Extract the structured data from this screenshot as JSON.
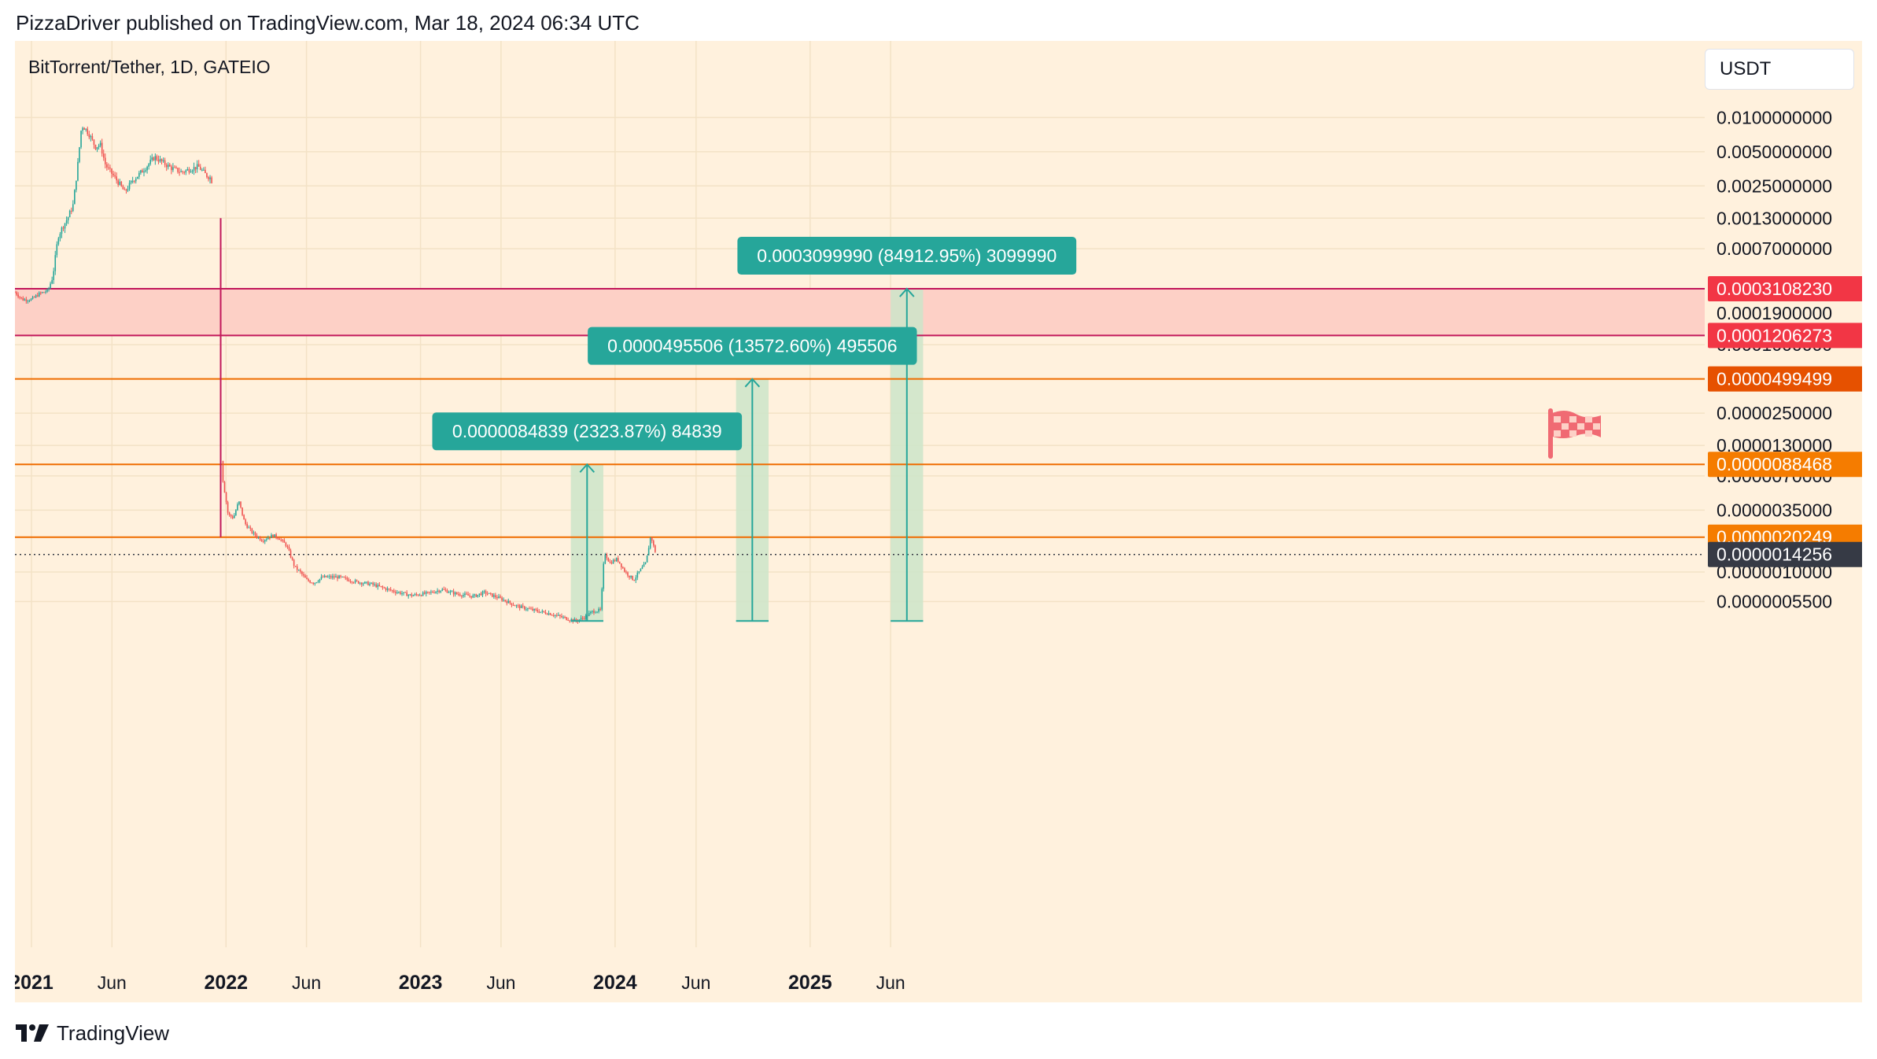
{
  "header": {
    "published": "PizzaDriver published on TradingView.com, Mar 18, 2024 06:34 UTC"
  },
  "symbol": {
    "title": "BitTorrent/Tether, 1D, GATEIO"
  },
  "unit": "USDT",
  "footer": {
    "brand": "TradingView",
    "logo": "tradingview-logo-icon"
  },
  "colors": {
    "background": "#fff1dd",
    "zone": "#fdd0c6",
    "red_line": "#c2185b",
    "orange_line": "#ef6c00",
    "projection": "#26a69a",
    "projection_fill": "#cde5c9",
    "up_candle": "#26a69a",
    "down_candle": "#ef5350",
    "red_tag": "#f23645",
    "orange_tag": "#f57c00",
    "dark_orange_tag": "#e65100",
    "current_tag": "#363a45"
  },
  "flag_icon": "checkered-flag-icon",
  "chart_data": {
    "type": "candlestick",
    "title": "BitTorrent/Tether, 1D, GATEIO",
    "scale": "log",
    "grid": true,
    "x_ticks": [
      "2021",
      "Jun",
      "2022",
      "Jun",
      "2023",
      "Jun",
      "2024",
      "Jun",
      "2025",
      "Jun"
    ],
    "y_ticks": [
      "0.0100000000",
      "0.0050000000",
      "0.0025000000",
      "0.0013000000",
      "0.0007000000",
      "0.0001900000",
      "0.0001000000",
      "0.0000250000",
      "0.0000130000",
      "0.0000070000",
      "0.0000035000",
      "0.0000010000",
      "0.0000005500"
    ],
    "y_tick_values": [
      0.01,
      0.005,
      0.0025,
      0.0013,
      0.0007,
      0.00019,
      0.0001,
      2.5e-05,
      1.3e-05,
      7e-06,
      3.5e-06,
      1e-06,
      5.5e-07
    ],
    "price_levels": [
      {
        "label": "0.0003108230",
        "value": 0.000310823,
        "color": "red"
      },
      {
        "label": "0.0001206273",
        "value": 0.0001206273,
        "color": "red"
      },
      {
        "label": "0.0000499499",
        "value": 4.99499e-05,
        "color": "dark_orange"
      },
      {
        "label": "0.0000088468",
        "value": 8.8468e-06,
        "color": "orange"
      },
      {
        "label": "0.0000020249",
        "value": 2.0249e-06,
        "color": "orange"
      },
      {
        "label": "0.0000014256",
        "value": 1.4256e-06,
        "color": "current"
      }
    ],
    "resistance_zone": {
      "from": 0.0001206273,
      "to": 0.000310823
    },
    "projections": [
      {
        "label": "0.0000084839 (2323.87%) 84839",
        "base": 3.7e-07,
        "target": 8.8468e-06,
        "start": "2023-10-10",
        "end": "2023-12-10"
      },
      {
        "label": "0.0000495506 (13572.60%) 495506",
        "base": 3.7e-07,
        "target": 4.99499e-05,
        "start": "2024-08-15",
        "end": "2024-10-15"
      },
      {
        "label": "0.0003099990 (84912.95%) 3099990",
        "base": 3.7e-07,
        "target": 0.000310823,
        "start": "2025-06-01",
        "end": "2025-08-01"
      }
    ],
    "price_path": [
      [
        "2020-12-01",
        0.00029
      ],
      [
        "2020-12-15",
        0.00025
      ],
      [
        "2021-01-01",
        0.00025
      ],
      [
        "2021-01-15",
        0.00028
      ],
      [
        "2021-02-01",
        0.0003
      ],
      [
        "2021-02-10",
        0.0004
      ],
      [
        "2021-02-20",
        0.0009
      ],
      [
        "2021-03-01",
        0.0011
      ],
      [
        "2021-03-10",
        0.0013
      ],
      [
        "2021-03-20",
        0.0017
      ],
      [
        "2021-03-28",
        0.0035
      ],
      [
        "2021-04-05",
        0.0085
      ],
      [
        "2021-04-12",
        0.008
      ],
      [
        "2021-04-20",
        0.007
      ],
      [
        "2021-05-01",
        0.0055
      ],
      [
        "2021-05-10",
        0.0058
      ],
      [
        "2021-05-20",
        0.0038
      ],
      [
        "2021-06-01",
        0.0032
      ],
      [
        "2021-06-15",
        0.0026
      ],
      [
        "2021-06-25",
        0.0022
      ],
      [
        "2021-07-10",
        0.0028
      ],
      [
        "2021-07-20",
        0.0031
      ],
      [
        "2021-08-05",
        0.0037
      ],
      [
        "2021-08-20",
        0.0045
      ],
      [
        "2021-09-05",
        0.004
      ],
      [
        "2021-09-20",
        0.0036
      ],
      [
        "2021-10-10",
        0.0033
      ],
      [
        "2021-10-25",
        0.0035
      ],
      [
        "2021-11-10",
        0.0037
      ],
      [
        "2021-11-25",
        0.0031
      ],
      [
        "2021-12-05",
        0.0029
      ],
      [
        "2021-12-25",
        7e-06
      ],
      [
        "2022-01-05",
        3.2e-06
      ],
      [
        "2022-01-15",
        3e-06
      ],
      [
        "2022-01-25",
        4.2e-06
      ],
      [
        "2022-02-05",
        2.7e-06
      ],
      [
        "2022-02-20",
        2.2e-06
      ],
      [
        "2022-03-10",
        1.9e-06
      ],
      [
        "2022-03-30",
        2.1e-06
      ],
      [
        "2022-04-10",
        2e-06
      ],
      [
        "2022-04-25",
        1.7e-06
      ],
      [
        "2022-05-10",
        1.1e-06
      ],
      [
        "2022-05-20",
        1e-06
      ],
      [
        "2022-06-01",
        8.5e-07
      ],
      [
        "2022-06-15",
        8e-07
      ],
      [
        "2022-07-01",
        9e-07
      ],
      [
        "2022-08-01",
        9e-07
      ],
      [
        "2022-09-01",
        8.2e-07
      ],
      [
        "2022-10-01",
        7.8e-07
      ],
      [
        "2022-11-10",
        6.8e-07
      ],
      [
        "2022-12-15",
        6.2e-07
      ],
      [
        "2023-01-15",
        6.5e-07
      ],
      [
        "2023-02-10",
        7e-07
      ],
      [
        "2023-03-10",
        6.4e-07
      ],
      [
        "2023-04-10",
        6.1e-07
      ],
      [
        "2023-05-01",
        6.6e-07
      ],
      [
        "2023-06-01",
        5.8e-07
      ],
      [
        "2023-07-01",
        5e-07
      ],
      [
        "2023-08-01",
        4.6e-07
      ],
      [
        "2023-09-01",
        4.3e-07
      ],
      [
        "2023-10-01",
        3.9e-07
      ],
      [
        "2023-10-20",
        3.7e-07
      ],
      [
        "2023-11-05",
        4e-07
      ],
      [
        "2023-11-20",
        4.5e-07
      ],
      [
        "2023-12-05",
        4.6e-07
      ],
      [
        "2023-12-12",
        1.5e-06
      ],
      [
        "2023-12-22",
        1.2e-06
      ],
      [
        "2024-01-05",
        1.3e-06
      ],
      [
        "2024-01-20",
        1e-06
      ],
      [
        "2024-02-05",
        8.5e-07
      ],
      [
        "2024-02-15",
        1e-06
      ],
      [
        "2024-02-28",
        1.2e-06
      ],
      [
        "2024-03-08",
        2.1e-06
      ],
      [
        "2024-03-13",
        1.7e-06
      ],
      [
        "2024-03-18",
        1.4256e-06
      ]
    ]
  }
}
